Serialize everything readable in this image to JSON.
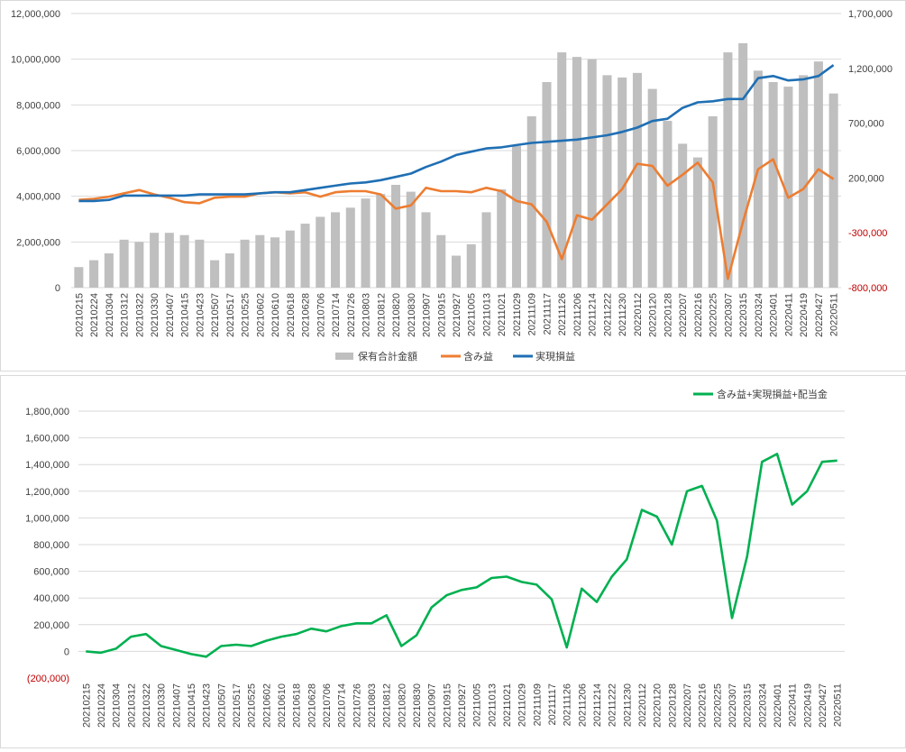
{
  "chart_data": [
    {
      "type": "bar+line",
      "title": "",
      "categories": [
        "20210215",
        "20210224",
        "20210304",
        "20210312",
        "20210322",
        "20210330",
        "20210407",
        "20210415",
        "20210423",
        "20210507",
        "20210517",
        "20210525",
        "20210602",
        "20210610",
        "20210618",
        "20210628",
        "20210706",
        "20210714",
        "20210726",
        "20210803",
        "20210812",
        "20210820",
        "20210830",
        "20210907",
        "20210915",
        "20210927",
        "20211005",
        "20211013",
        "20211021",
        "20211029",
        "20211109",
        "20211117",
        "20211126",
        "20211206",
        "20211214",
        "20211222",
        "20211230",
        "20220112",
        "20220120",
        "20220128",
        "20220207",
        "20220216",
        "20220225",
        "20220307",
        "20220315",
        "20220324",
        "20220401",
        "20220411",
        "20220419",
        "20220427",
        "20220511"
      ],
      "ylim_left": [
        0,
        12000000
      ],
      "yticks_left": [
        "0",
        "2,000,000",
        "4,000,000",
        "6,000,000",
        "8,000,000",
        "10,000,000",
        "12,000,000"
      ],
      "ylim_right": [
        -800000,
        1700000
      ],
      "yticks_right": [
        "-800,000",
        "-300,000",
        "200,000",
        "700,000",
        "1,200,000",
        "1,700,000"
      ],
      "negative_tick_color": "#c00000",
      "grid": true,
      "legend_position": "bottom",
      "series": [
        {
          "name": "保有合計金額",
          "type": "bar",
          "axis": "left",
          "color": "#bfbfbf",
          "values": [
            900000,
            1200000,
            1500000,
            2100000,
            2000000,
            2400000,
            2400000,
            2300000,
            2100000,
            1200000,
            1500000,
            2100000,
            2300000,
            2200000,
            2500000,
            2800000,
            3100000,
            3300000,
            3500000,
            3900000,
            4100000,
            4500000,
            4200000,
            3300000,
            2300000,
            1400000,
            1900000,
            3300000,
            4300000,
            6200000,
            7500000,
            9000000,
            10300000,
            10100000,
            10000000,
            9300000,
            9200000,
            9400000,
            8700000,
            7300000,
            6300000,
            5700000,
            7500000,
            10300000,
            10700000,
            9500000,
            9000000,
            8800000,
            9300000,
            9900000,
            8500000
          ]
        },
        {
          "name": "含み益",
          "type": "line",
          "axis": "right",
          "color": "#ed7d31",
          "values": [
            0,
            10000,
            30000,
            60000,
            90000,
            50000,
            20000,
            -20000,
            -30000,
            20000,
            30000,
            30000,
            60000,
            70000,
            60000,
            70000,
            30000,
            70000,
            80000,
            80000,
            50000,
            -80000,
            -50000,
            110000,
            80000,
            80000,
            70000,
            110000,
            80000,
            -10000,
            -40000,
            -200000,
            -540000,
            -140000,
            -180000,
            -40000,
            100000,
            330000,
            310000,
            130000,
            230000,
            340000,
            160000,
            -720000,
            -200000,
            280000,
            370000,
            20000,
            100000,
            280000,
            190000
          ]
        },
        {
          "name": "実現損益",
          "type": "line",
          "axis": "right",
          "color": "#1f6fb4",
          "values": [
            -10000,
            -10000,
            0,
            40000,
            40000,
            40000,
            40000,
            40000,
            50000,
            50000,
            50000,
            50000,
            60000,
            70000,
            70000,
            90000,
            110000,
            130000,
            150000,
            160000,
            180000,
            210000,
            240000,
            300000,
            350000,
            410000,
            440000,
            470000,
            480000,
            500000,
            520000,
            530000,
            540000,
            550000,
            570000,
            590000,
            620000,
            660000,
            720000,
            740000,
            840000,
            890000,
            900000,
            920000,
            920000,
            1110000,
            1130000,
            1090000,
            1100000,
            1130000,
            1230000
          ]
        }
      ]
    },
    {
      "type": "line",
      "title": "",
      "categories": [
        "20210215",
        "20210224",
        "20210304",
        "20210312",
        "20210322",
        "20210330",
        "20210407",
        "20210415",
        "20210423",
        "20210507",
        "20210517",
        "20210525",
        "20210602",
        "20210610",
        "20210618",
        "20210628",
        "20210706",
        "20210714",
        "20210726",
        "20210803",
        "20210812",
        "20210820",
        "20210830",
        "20210907",
        "20210915",
        "20210927",
        "20211005",
        "20211013",
        "20211021",
        "20211029",
        "20211109",
        "20211117",
        "20211126",
        "20211206",
        "20211214",
        "20211222",
        "20211230",
        "20220112",
        "20220120",
        "20220128",
        "20220207",
        "20220216",
        "20220225",
        "20220307",
        "20220315",
        "20220324",
        "20220401",
        "20220411",
        "20220419",
        "20220427",
        "20220511"
      ],
      "ylim": [
        -200000,
        1800000
      ],
      "yticks": [
        "(200,000)",
        "0",
        "200,000",
        "400,000",
        "600,000",
        "800,000",
        "1,000,000",
        "1,200,000",
        "1,400,000",
        "1,600,000",
        "1,800,000"
      ],
      "negative_tick_color": "#c00000",
      "grid": true,
      "legend_position": "top-right",
      "series": [
        {
          "name": "含み益+実現損益+配当金",
          "color": "#00b050",
          "values": [
            0,
            -10000,
            20000,
            110000,
            130000,
            40000,
            10000,
            -20000,
            -40000,
            40000,
            50000,
            40000,
            80000,
            110000,
            130000,
            170000,
            150000,
            190000,
            210000,
            210000,
            270000,
            40000,
            120000,
            330000,
            420000,
            460000,
            480000,
            550000,
            560000,
            520000,
            500000,
            390000,
            30000,
            470000,
            370000,
            560000,
            690000,
            1060000,
            1010000,
            800000,
            1200000,
            1240000,
            980000,
            250000,
            710000,
            1420000,
            1480000,
            1100000,
            1200000,
            1420000,
            1430000
          ]
        }
      ]
    }
  ]
}
